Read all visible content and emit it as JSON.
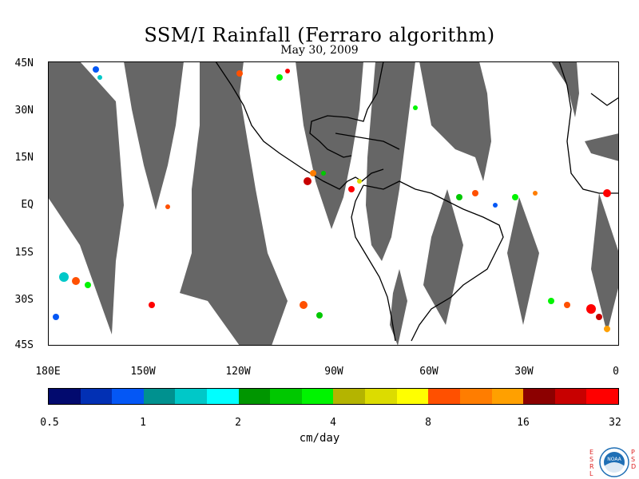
{
  "title": "SSM/I Rainfall (Ferraro algorithm)",
  "date": "May 30, 2009",
  "lat_labels": [
    "45N",
    "30N",
    "15N",
    "EQ",
    "15S",
    "30S",
    "45S"
  ],
  "lon_labels": [
    "180E",
    "150W",
    "120W",
    "90W",
    "60W",
    "30W",
    "0"
  ],
  "colorbar": {
    "colors": [
      "#020a6e",
      "#0230b4",
      "#0457f5",
      "#00918f",
      "#00c8c8",
      "#00ffff",
      "#009600",
      "#00c800",
      "#00f400",
      "#b4b400",
      "#dcdc00",
      "#ffff00",
      "#ff5000",
      "#ff7d00",
      "#ffa000",
      "#8c0000",
      "#c80000",
      "#ff0000"
    ],
    "tick_labels": [
      "0.5",
      "1",
      "2",
      "4",
      "8",
      "16",
      "32"
    ],
    "units": "cm/day"
  },
  "colors": {
    "no_data": "#666666",
    "land_outline": "#000000",
    "background": "#ffffff"
  },
  "logo": {
    "left_text": "ESRL",
    "right_text": "PSD",
    "name": "noaa-logo-icon",
    "inner_text": "NOAA"
  }
}
